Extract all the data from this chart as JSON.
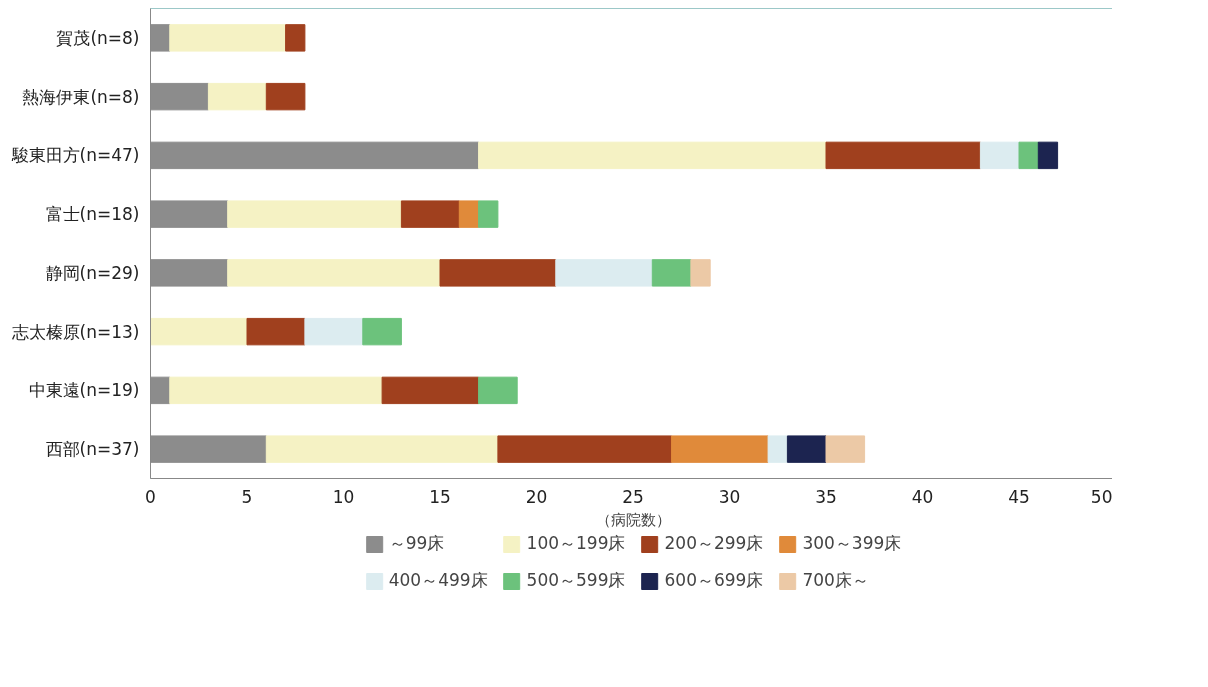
{
  "chart_data": {
    "type": "bar",
    "orientation": "horizontal",
    "stacked": true,
    "categories": [
      "賀茂(n=8)",
      "熱海伊東(n=8)",
      "駿東田方(n=47)",
      "富士(n=18)",
      "静岡(n=29)",
      "志太榛原(n=13)",
      "中東遠(n=19)",
      "西部(n=37)"
    ],
    "series": [
      {
        "name": "～99床",
        "color": "#8c8c8c",
        "values": [
          1,
          3,
          17,
          4,
          4,
          null,
          1,
          6
        ]
      },
      {
        "name": "100～199床",
        "color": "#f5f2c4",
        "values": [
          6,
          3,
          18,
          9,
          11,
          5,
          11,
          12
        ]
      },
      {
        "name": "200～299床",
        "color": "#a0401e",
        "values": [
          1,
          2,
          8,
          3,
          6,
          3,
          5,
          9
        ]
      },
      {
        "name": "300～399床",
        "color": "#e08a3a",
        "values": [
          null,
          null,
          null,
          1,
          null,
          null,
          null,
          5
        ]
      },
      {
        "name": "400～499床",
        "color": "#dcecf0",
        "values": [
          null,
          null,
          2,
          null,
          5,
          3,
          null,
          1
        ]
      },
      {
        "name": "500～599床",
        "color": "#6cc27c",
        "values": [
          null,
          null,
          1,
          1,
          2,
          2,
          2,
          null
        ]
      },
      {
        "name": "600～699床",
        "color": "#1c2450",
        "values": [
          null,
          null,
          1,
          null,
          null,
          null,
          null,
          2
        ]
      },
      {
        "name": "700床～",
        "color": "#ecc9a6",
        "values": [
          null,
          null,
          null,
          null,
          1,
          null,
          null,
          2
        ]
      }
    ],
    "xlim": [
      0,
      50
    ],
    "xticks": [
      0,
      5,
      10,
      15,
      20,
      25,
      30,
      35,
      40,
      45,
      50
    ],
    "xlabel": "（病院数）",
    "legend": "bottom",
    "grid": false
  }
}
